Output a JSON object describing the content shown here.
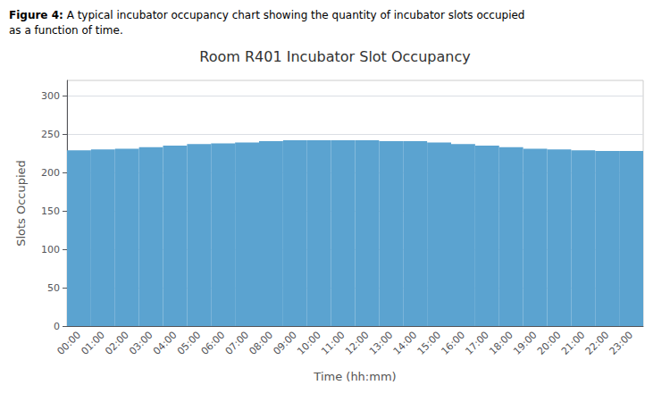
{
  "chart_data": {
    "type": "bar",
    "title": "Room R401 Incubator Slot Occupancy",
    "annotations": [
      "Figure 4:",
      "A typical incubator occupancy chart showing the quantity of incubator slots occupied\nas a function of time."
    ],
    "xlabel": "Time (hh:mm)",
    "ylabel": "Slots Occupied",
    "categories": [
      "00:00",
      "01:00",
      "02:00",
      "03:00",
      "04:00",
      "05:00",
      "06:00",
      "07:00",
      "08:00",
      "09:00",
      "10:00",
      "11:00",
      "12:00",
      "13:00",
      "14:00",
      "15:00",
      "16:00",
      "17:00",
      "18:00",
      "19:00",
      "20:00",
      "21:00",
      "22:00",
      "23:00"
    ],
    "values": [
      229,
      230,
      231,
      233,
      235,
      237,
      238,
      239,
      241,
      242,
      242,
      242,
      242,
      241,
      241,
      239,
      237,
      235,
      233,
      231,
      230,
      229,
      228,
      228
    ],
    "color": "#5BA3D0",
    "ylim": [
      0,
      320
    ],
    "yticks": [
      0,
      50,
      100,
      150,
      200,
      250,
      300
    ],
    "grid": true
  }
}
